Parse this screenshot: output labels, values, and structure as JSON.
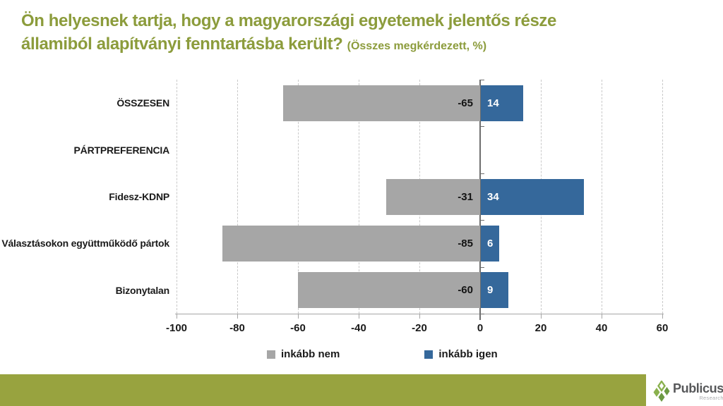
{
  "title": {
    "line1": "Ön helyesnek tartja, hogy a magyarországi egyetemek jelentős része",
    "line2": "államiból alapítványi fenntartásba került?",
    "subtitle": "(Összes megkérdezett, %)"
  },
  "chart_data": {
    "type": "bar",
    "orientation": "horizontal-diverging",
    "categories": [
      "ÖSSZESEN",
      "PÁRTPREFERENCIA",
      "Fidesz-KDNP",
      "Választásokon együttműködő pártok",
      "Bizonytalan"
    ],
    "series": [
      {
        "name": "inkább nem",
        "color": "#A6A6A6",
        "values": [
          -65,
          null,
          -31,
          -85,
          -60
        ]
      },
      {
        "name": "inkább igen",
        "color": "#35689B",
        "values": [
          14,
          null,
          34,
          6,
          9
        ]
      }
    ],
    "xlim": [
      -100,
      60
    ],
    "xticks": [
      -100,
      -80,
      -60,
      -40,
      -20,
      0,
      20,
      40,
      60
    ],
    "grid": "dashed-vertical",
    "legend_position": "bottom",
    "value_labels": "inside-near-zero"
  },
  "footer": {
    "brand": "Publicus",
    "brand_sub": "Research"
  },
  "colors": {
    "title_green": "#8C9C3C",
    "band_green": "#98A33F",
    "logo_green_light": "#8AB14E",
    "logo_green_dark": "#6C9A43",
    "bar_gray": "#A6A6A6",
    "bar_blue": "#35689B",
    "text_dark": "#1a1a1a"
  }
}
